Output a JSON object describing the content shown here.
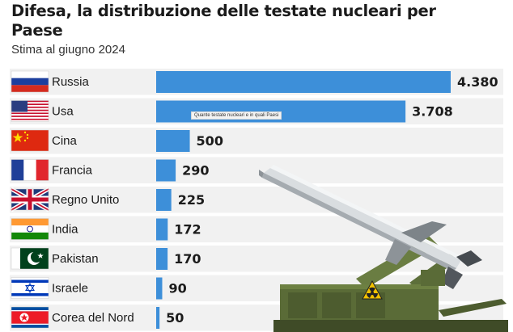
{
  "header": {
    "title": "Difesa, la distribuzione delle testate nucleari per Paese",
    "subtitle": "Stima al giugno 2024"
  },
  "tooltip": "Quante testate nucleari e in quali Paesi",
  "colors": {
    "bar": "#3d8fd9",
    "stripe": "#f1f1f1",
    "label": "#1b1b1b"
  },
  "chart_data": {
    "type": "bar",
    "orientation": "horizontal",
    "categories": [
      "Russia",
      "Usa",
      "Cina",
      "Francia",
      "Regno Unito",
      "India",
      "Pakistan",
      "Israele",
      "Corea del Nord"
    ],
    "values": [
      4380,
      3708,
      500,
      290,
      225,
      172,
      170,
      90,
      50
    ],
    "value_labels": [
      "4.380",
      "3.708",
      "500",
      "290",
      "225",
      "172",
      "170",
      "90",
      "50"
    ],
    "flags": [
      "flag-russia-icon",
      "flag-usa-icon",
      "flag-china-icon",
      "flag-france-icon",
      "flag-uk-icon",
      "flag-india-icon",
      "flag-pakistan-icon",
      "flag-israel-icon",
      "flag-north-korea-icon"
    ],
    "title": "Difesa, la distribuzione delle testate nucleari per Paese",
    "subtitle": "Stima al giugno 2024",
    "xlim": [
      0,
      4380
    ],
    "grid": false,
    "legend": "none"
  }
}
